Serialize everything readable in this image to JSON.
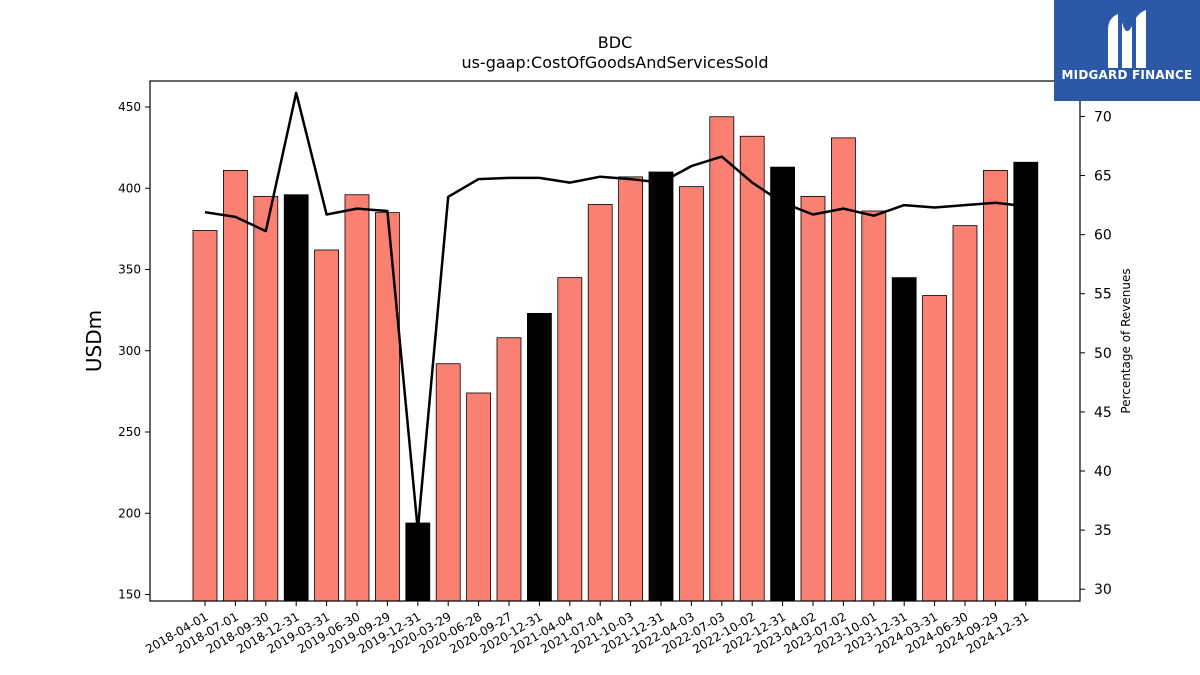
{
  "brand": {
    "name": "MIDGARD FINANCE",
    "bg_color": "#2b59a8"
  },
  "chart_data": {
    "type": "bar",
    "title": "BDC",
    "subtitle": "us-gaap:CostOfGoodsAndServicesSold",
    "ylabel": "USDm",
    "y2label": "Percentage of Revenues",
    "ylim": [
      146,
      466
    ],
    "y2lim": [
      29,
      73
    ],
    "yticks": [
      150,
      200,
      250,
      300,
      350,
      400,
      450
    ],
    "y2ticks": [
      30,
      35,
      40,
      45,
      50,
      55,
      60,
      65,
      70
    ],
    "categories": [
      "2018-04-01",
      "2018-07-01",
      "2018-09-30",
      "2018-12-31",
      "2019-03-31",
      "2019-06-30",
      "2019-09-29",
      "2019-12-31",
      "2020-03-29",
      "2020-06-28",
      "2020-09-27",
      "2020-12-31",
      "2021-04-04",
      "2021-07-04",
      "2021-10-03",
      "2021-12-31",
      "2022-04-03",
      "2022-07-03",
      "2022-10-02",
      "2022-12-31",
      "2023-04-02",
      "2023-07-02",
      "2023-10-01",
      "2023-12-31",
      "2024-03-31",
      "2024-06-30",
      "2024-09-29",
      "2024-12-31"
    ],
    "series": [
      {
        "type": "bar",
        "values": [
          374,
          411,
          395,
          396,
          362,
          396,
          385,
          194,
          292,
          274,
          308,
          323,
          345,
          390,
          407,
          410,
          401,
          444,
          432,
          413,
          395,
          431,
          386,
          345,
          334,
          377,
          411,
          416
        ],
        "quarter_end": [
          false,
          false,
          false,
          true,
          false,
          false,
          false,
          true,
          false,
          false,
          false,
          true,
          false,
          false,
          false,
          true,
          false,
          false,
          false,
          true,
          false,
          false,
          false,
          true,
          false,
          false,
          false,
          true
        ]
      },
      {
        "type": "line",
        "axis": "right",
        "values": [
          61.9,
          61.5,
          60.3,
          72.0,
          61.7,
          62.2,
          62.0,
          35.0,
          63.2,
          64.7,
          64.8,
          64.8,
          64.4,
          64.9,
          64.7,
          64.4,
          65.8,
          66.6,
          64.4,
          62.7,
          61.7,
          62.2,
          61.6,
          62.5,
          62.3,
          62.5,
          62.7,
          62.4
        ]
      }
    ],
    "colors": {
      "bar": "#fa8072",
      "bar_highlight": "#000000",
      "line": "#000000"
    },
    "grid": false
  }
}
